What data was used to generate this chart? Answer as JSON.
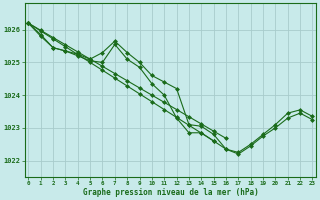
{
  "xlabel": "Graphe pression niveau de la mer (hPa)",
  "xlim": [
    -0.3,
    23.3
  ],
  "ylim": [
    1021.5,
    1026.8
  ],
  "yticks": [
    1022,
    1023,
    1024,
    1025,
    1026
  ],
  "xticks": [
    0,
    1,
    2,
    3,
    4,
    5,
    6,
    7,
    8,
    9,
    10,
    11,
    12,
    13,
    14,
    15,
    16,
    17,
    18,
    19,
    20,
    21,
    22,
    23
  ],
  "background_color": "#c8eaea",
  "grid_color": "#a8cccc",
  "line_color": "#1a6b1a",
  "figsize": [
    3.2,
    2.0
  ],
  "dpi": 100,
  "line1": [
    1026.2,
    1025.85,
    1025.45,
    1025.35,
    1025.25,
    1025.1,
    1025.3,
    1025.65,
    1025.3,
    1025.0,
    1024.6,
    1024.4,
    1024.2,
    1023.1,
    1023.05,
    1022.8,
    1022.35,
    1022.25,
    1022.5,
    1022.8,
    1023.1,
    1023.45,
    1023.55,
    1023.35
  ],
  "line2": [
    1026.2,
    1025.8,
    1025.45,
    1025.35,
    1025.2,
    1025.05,
    1025.0,
    1025.55,
    1025.1,
    1024.85,
    1024.35,
    1024.0,
    1023.3,
    1022.85,
    1022.85,
    1022.6,
    1022.35,
    1022.2,
    1022.45,
    1022.75,
    1023.0,
    1023.3,
    1023.45,
    1023.25
  ],
  "line3_linear": [
    1026.2,
    1025.98,
    1025.76,
    1025.54,
    1025.32,
    1025.1,
    1024.88,
    1024.66,
    1024.44,
    1024.22,
    1024.0,
    1023.78,
    1023.56,
    1023.34,
    1023.12,
    1022.9,
    1022.68,
    null,
    null,
    null,
    null,
    null,
    null,
    null
  ],
  "line4_linear": [
    1026.2,
    1025.96,
    1025.72,
    1025.48,
    1025.24,
    1025.0,
    1024.76,
    1024.52,
    1024.28,
    1024.04,
    1023.8,
    1023.56,
    1023.32,
    1023.08,
    1022.84,
    1022.6,
    null,
    null,
    null,
    null,
    null,
    null,
    null,
    null
  ]
}
